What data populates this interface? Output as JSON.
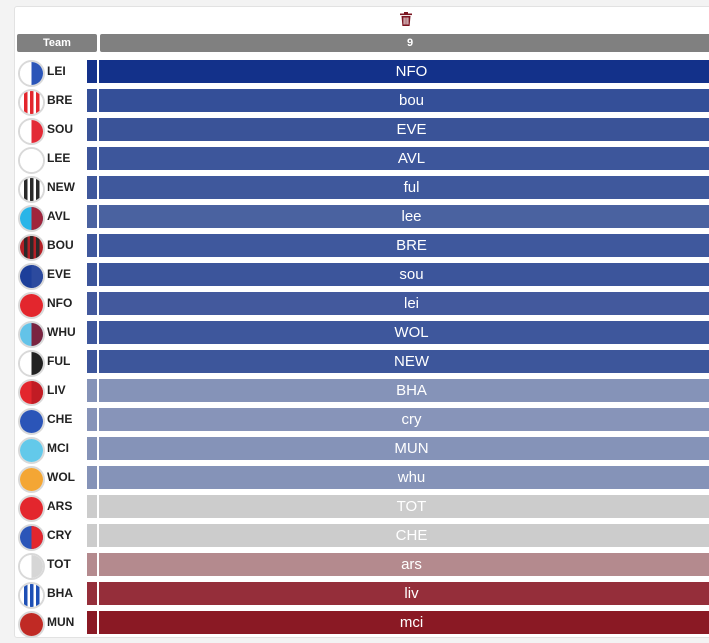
{
  "toolbar": {
    "delete_icon": "trash-icon"
  },
  "header": {
    "team_label": "Team",
    "gameweek_label": "9"
  },
  "rows": [
    {
      "code": "LEI",
      "opponent": "NFO",
      "fdr_color": "#13318a",
      "badge": {
        "type": "half",
        "colors": [
          "#ffffff",
          "#2b55b8"
        ]
      }
    },
    {
      "code": "BRE",
      "opponent": "bou",
      "fdr_color": "#344f98",
      "badge": {
        "type": "stripes",
        "colors": [
          "#ffffff",
          "#e3262d"
        ]
      }
    },
    {
      "code": "SOU",
      "opponent": "EVE",
      "fdr_color": "#3a5398",
      "badge": {
        "type": "half",
        "colors": [
          "#ffffff",
          "#e32a36"
        ]
      }
    },
    {
      "code": "LEE",
      "opponent": "AVL",
      "fdr_color": "#3d569b",
      "badge": {
        "type": "solid",
        "colors": [
          "#ffffff"
        ]
      }
    },
    {
      "code": "NEW",
      "opponent": "ful",
      "fdr_color": "#3f589c",
      "badge": {
        "type": "stripes",
        "colors": [
          "#ffffff",
          "#2a2a2a"
        ]
      }
    },
    {
      "code": "AVL",
      "opponent": "lee",
      "fdr_color": "#4a62a0",
      "badge": {
        "type": "half",
        "colors": [
          "#2ab5e8",
          "#a0253c"
        ]
      }
    },
    {
      "code": "BOU",
      "opponent": "BRE",
      "fdr_color": "#3f589d",
      "badge": {
        "type": "stripes",
        "colors": [
          "#b42026",
          "#2a2a2a"
        ]
      }
    },
    {
      "code": "EVE",
      "opponent": "sou",
      "fdr_color": "#3c559b",
      "badge": {
        "type": "half",
        "colors": [
          "#1d3f9a",
          "#2c4a9e"
        ]
      }
    },
    {
      "code": "NFO",
      "opponent": "lei",
      "fdr_color": "#43599d",
      "badge": {
        "type": "solid",
        "colors": [
          "#e3262d"
        ]
      }
    },
    {
      "code": "WHU",
      "opponent": "WOL",
      "fdr_color": "#3e579c",
      "badge": {
        "type": "half",
        "colors": [
          "#63c3e8",
          "#7a2440"
        ]
      }
    },
    {
      "code": "FUL",
      "opponent": "NEW",
      "fdr_color": "#3d569b",
      "badge": {
        "type": "half",
        "colors": [
          "#ffffff",
          "#222222"
        ]
      }
    },
    {
      "code": "LIV",
      "opponent": "BHA",
      "fdr_color": "#8593b8",
      "badge": {
        "type": "half",
        "colors": [
          "#e3262d",
          "#c11c24"
        ]
      }
    },
    {
      "code": "CHE",
      "opponent": "cry",
      "fdr_color": "#8794b9",
      "badge": {
        "type": "solid",
        "colors": [
          "#2b55b8"
        ]
      }
    },
    {
      "code": "MCI",
      "opponent": "MUN",
      "fdr_color": "#8593b8",
      "badge": {
        "type": "solid",
        "colors": [
          "#63c9ea"
        ]
      }
    },
    {
      "code": "WOL",
      "opponent": "whu",
      "fdr_color": "#8593b8",
      "badge": {
        "type": "solid",
        "colors": [
          "#f4a634"
        ]
      }
    },
    {
      "code": "ARS",
      "opponent": "TOT",
      "fdr_color": "#cccccc",
      "badge": {
        "type": "solid",
        "colors": [
          "#e3262d"
        ]
      }
    },
    {
      "code": "CRY",
      "opponent": "CHE",
      "fdr_color": "#cccccc",
      "badge": {
        "type": "half",
        "colors": [
          "#2b55b8",
          "#e3262d"
        ]
      }
    },
    {
      "code": "TOT",
      "opponent": "ars",
      "fdr_color": "#b48a8e",
      "badge": {
        "type": "half",
        "colors": [
          "#ffffff",
          "#d6d6d6"
        ]
      }
    },
    {
      "code": "BHA",
      "opponent": "liv",
      "fdr_color": "#952e3a",
      "badge": {
        "type": "stripes",
        "colors": [
          "#ffffff",
          "#1e4fb5"
        ]
      }
    },
    {
      "code": "MUN",
      "opponent": "mci",
      "fdr_color": "#8a1924",
      "badge": {
        "type": "solid",
        "colors": [
          "#c02a24"
        ]
      }
    }
  ]
}
